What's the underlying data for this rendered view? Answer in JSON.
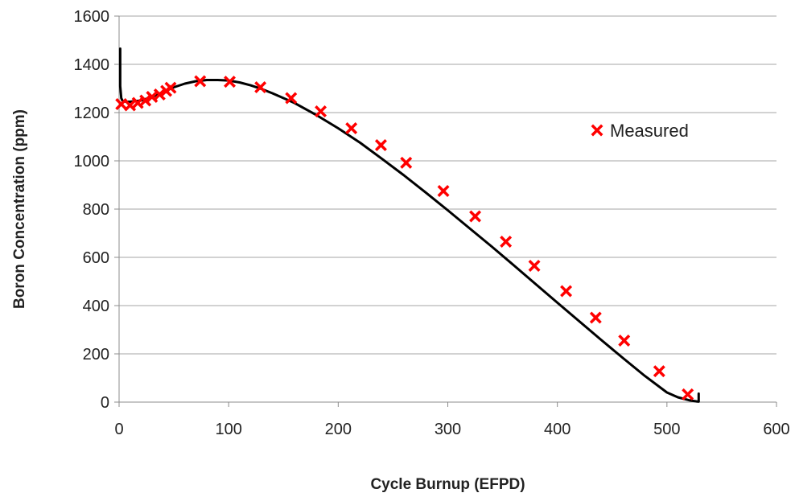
{
  "colors": {
    "background": "#ffffff",
    "grid": "#a6a6a6",
    "axis": "#8c8c8c",
    "calculated_line": "#000000",
    "measured_marker": "#ff0000"
  },
  "chart_data": {
    "type": "scatter",
    "title": "",
    "xlabel": "Cycle Burnup (EFPD)",
    "ylabel": "Boron Concentration (ppm)",
    "xlim": [
      0,
      600
    ],
    "ylim": [
      0,
      1600
    ],
    "x_ticks": [
      0,
      100,
      200,
      300,
      400,
      500,
      600
    ],
    "y_ticks": [
      0,
      200,
      400,
      600,
      800,
      1000,
      1200,
      1400,
      1600
    ],
    "grid": "horizontal",
    "legend_position": "right",
    "series": [
      {
        "kind": "line",
        "color": "#000000",
        "x": [
          1,
          1,
          2,
          3,
          6,
          10,
          20,
          30,
          40,
          50,
          60,
          70,
          80,
          90,
          100,
          110,
          120,
          130,
          140,
          150,
          160,
          180,
          200,
          220,
          240,
          260,
          280,
          300,
          320,
          340,
          360,
          380,
          400,
          420,
          440,
          460,
          480,
          500,
          510,
          520,
          527,
          529,
          529
        ],
        "y": [
          1465,
          1310,
          1260,
          1250,
          1245,
          1245,
          1250,
          1265,
          1285,
          1305,
          1320,
          1330,
          1335,
          1335,
          1333,
          1325,
          1313,
          1298,
          1280,
          1260,
          1240,
          1190,
          1135,
          1075,
          1008,
          940,
          868,
          795,
          720,
          645,
          568,
          490,
          412,
          335,
          258,
          182,
          108,
          40,
          20,
          8,
          3,
          2,
          35
        ]
      },
      {
        "name": "Measured",
        "kind": "marker",
        "marker": "x",
        "color": "#ff0000",
        "x": [
          2,
          10,
          17,
          24,
          30,
          37,
          43,
          47,
          74,
          101,
          129,
          157,
          184,
          212,
          239,
          262,
          296,
          325,
          353,
          379,
          408,
          435,
          461,
          493,
          519
        ],
        "y": [
          1235,
          1230,
          1240,
          1250,
          1265,
          1275,
          1290,
          1303,
          1330,
          1328,
          1305,
          1260,
          1205,
          1135,
          1065,
          992,
          875,
          770,
          665,
          565,
          460,
          350,
          255,
          128,
          32
        ]
      }
    ]
  }
}
